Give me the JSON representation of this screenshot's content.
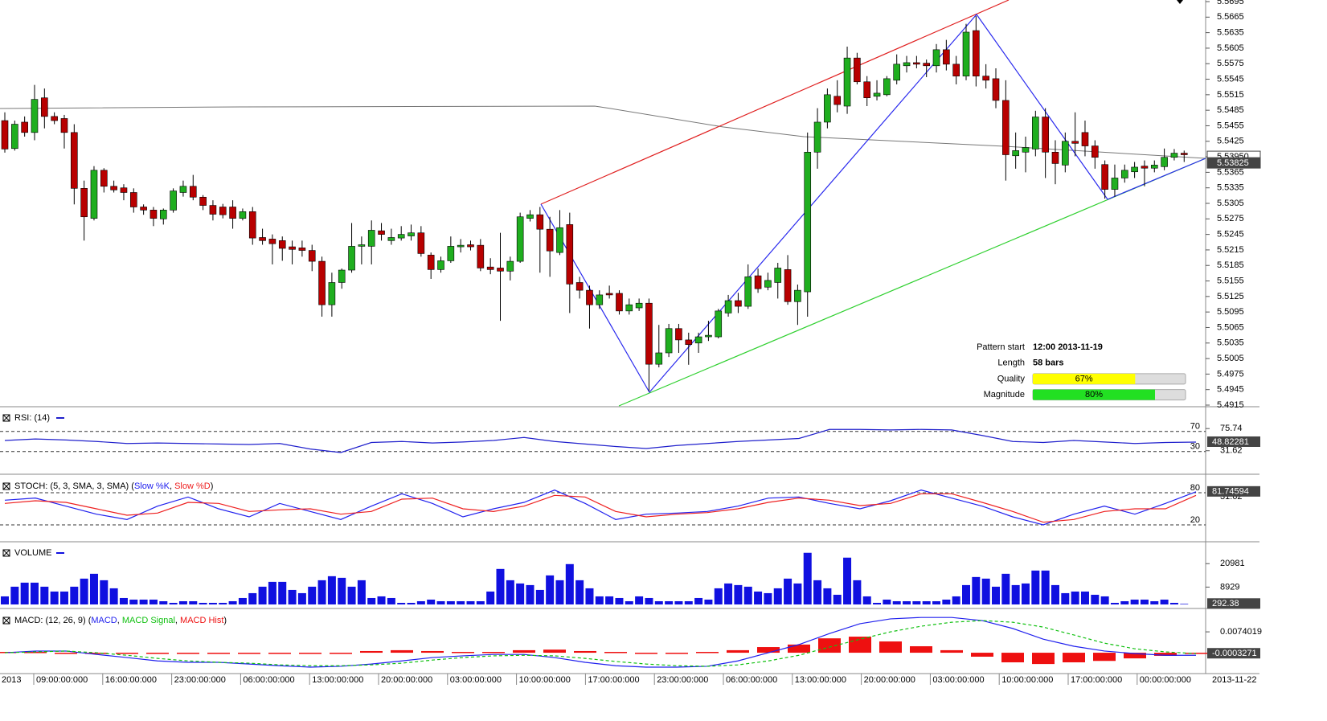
{
  "chart_data": {
    "type": "candlestick",
    "candles": [
      [
        5.5465,
        5.5481,
        5.5403,
        5.541
      ],
      [
        5.5411,
        5.5465,
        5.5407,
        5.5458
      ],
      [
        5.5462,
        5.5473,
        5.5434,
        5.5442
      ],
      [
        5.5442,
        5.5534,
        5.5427,
        5.5506
      ],
      [
        5.5509,
        5.5527,
        5.545,
        5.5473
      ],
      [
        5.5473,
        5.5481,
        5.5458,
        5.5465
      ],
      [
        5.5469,
        5.5476,
        5.5411,
        5.5442
      ],
      [
        5.5442,
        5.5458,
        5.5303,
        5.5334
      ],
      [
        5.5334,
        5.5349,
        5.5233,
        5.5279
      ],
      [
        5.5276,
        5.5377,
        5.5272,
        5.5369
      ],
      [
        5.5369,
        5.5373,
        5.5326,
        5.5338
      ],
      [
        5.5338,
        5.5349,
        5.5326,
        5.5331
      ],
      [
        5.5335,
        5.5342,
        5.5311,
        5.5326
      ],
      [
        5.5326,
        5.5334,
        5.5287,
        5.5298
      ],
      [
        5.5298,
        5.5303,
        5.5283,
        5.5292
      ],
      [
        5.5292,
        5.5298,
        5.5261,
        5.5276
      ],
      [
        5.5275,
        5.5295,
        5.5264,
        5.5292
      ],
      [
        5.5292,
        5.5334,
        5.5287,
        5.5329
      ],
      [
        5.5326,
        5.5349,
        5.5318,
        5.5338
      ],
      [
        5.5338,
        5.536,
        5.5311,
        5.5317
      ],
      [
        5.5317,
        5.5321,
        5.5292,
        5.5301
      ],
      [
        5.5301,
        5.5311,
        5.5272,
        5.5284
      ],
      [
        5.5298,
        5.5304,
        5.5276,
        5.5283
      ],
      [
        5.5298,
        5.5311,
        5.5256,
        5.5276
      ],
      [
        5.5276,
        5.5295,
        5.5272,
        5.5289
      ],
      [
        5.5289,
        5.5298,
        5.5225,
        5.5238
      ],
      [
        5.5239,
        5.5256,
        5.5225,
        5.5233
      ],
      [
        5.5236,
        5.5245,
        5.5187,
        5.5227
      ],
      [
        5.5233,
        5.5241,
        5.5194,
        5.5218
      ],
      [
        5.5221,
        5.5233,
        5.5187,
        5.5216
      ],
      [
        5.5219,
        5.5233,
        5.5202,
        5.5214
      ],
      [
        5.5214,
        5.5225,
        5.5174,
        5.5193
      ],
      [
        5.5193,
        5.5202,
        5.5086,
        5.5109
      ],
      [
        5.5109,
        5.5171,
        5.5086,
        5.5152
      ],
      [
        5.5152,
        5.5179,
        5.514,
        5.5176
      ],
      [
        5.5176,
        5.5267,
        5.5171,
        5.5222
      ],
      [
        5.5222,
        5.5241,
        5.5187,
        5.5225
      ],
      [
        5.5222,
        5.5272,
        5.5187,
        5.5253
      ],
      [
        5.5252,
        5.5267,
        5.5233,
        5.5245
      ],
      [
        5.5233,
        5.5256,
        5.5225,
        5.5239
      ],
      [
        5.5238,
        5.5261,
        5.5233,
        5.5245
      ],
      [
        5.5242,
        5.5264,
        5.5233,
        5.5248
      ],
      [
        5.5248,
        5.5261,
        5.5202,
        5.5208
      ],
      [
        5.5205,
        5.521,
        5.5159,
        5.5177
      ],
      [
        5.5177,
        5.5202,
        5.5171,
        5.5194
      ],
      [
        5.5194,
        5.5241,
        5.519,
        5.5222
      ],
      [
        5.5221,
        5.5236,
        5.521,
        5.5224
      ],
      [
        5.5225,
        5.5233,
        5.5214,
        5.5221
      ],
      [
        5.5224,
        5.5236,
        5.5174,
        5.518
      ],
      [
        5.5182,
        5.5199,
        5.5168,
        5.5177
      ],
      [
        5.518,
        5.5248,
        5.5078,
        5.5174
      ],
      [
        5.5174,
        5.5202,
        5.5156,
        5.5193
      ],
      [
        5.5193,
        5.5287,
        5.519,
        5.5279
      ],
      [
        5.5276,
        5.5292,
        5.527,
        5.5283
      ],
      [
        5.5283,
        5.5298,
        5.5171,
        5.5255
      ],
      [
        5.5255,
        5.5279,
        5.5163,
        5.5213
      ],
      [
        5.521,
        5.5292,
        5.5205,
        5.5258
      ],
      [
        5.5264,
        5.5287,
        5.5093,
        5.5149
      ],
      [
        5.5152,
        5.5163,
        5.5121,
        5.5137
      ],
      [
        5.5137,
        5.5146,
        5.5063,
        5.5109
      ],
      [
        5.5109,
        5.5137,
        5.5101,
        5.5128
      ],
      [
        5.5131,
        5.5146,
        5.5121,
        5.5128
      ],
      [
        5.5131,
        5.5137,
        5.509,
        5.5097
      ],
      [
        5.5097,
        5.5121,
        5.509,
        5.5109
      ],
      [
        5.5103,
        5.5121,
        5.5097,
        5.5112
      ],
      [
        5.5112,
        5.5121,
        5.4942,
        5.4994
      ],
      [
        5.4994,
        5.507,
        5.4988,
        5.5016
      ],
      [
        5.5016,
        5.5072,
        5.5008,
        5.5063
      ],
      [
        5.5063,
        5.5072,
        5.5016,
        5.5041
      ],
      [
        5.5041,
        5.5055,
        5.4993,
        5.5032
      ],
      [
        5.5035,
        5.5055,
        5.5016,
        5.5047
      ],
      [
        5.5047,
        5.5078,
        5.5039,
        5.505
      ],
      [
        5.5047,
        5.5101,
        5.5044,
        5.5097
      ],
      [
        5.5093,
        5.5128,
        5.5086,
        5.5117
      ],
      [
        5.5117,
        5.5132,
        5.5093,
        5.5106
      ],
      [
        5.5106,
        5.5187,
        5.5101,
        5.5163
      ],
      [
        5.5165,
        5.5179,
        5.5132,
        5.514
      ],
      [
        5.5143,
        5.5171,
        5.5137,
        5.5156
      ],
      [
        5.5152,
        5.519,
        5.5121,
        5.518
      ],
      [
        5.5177,
        5.5205,
        5.5109,
        5.5115
      ],
      [
        5.5115,
        5.5148,
        5.507,
        5.5137
      ],
      [
        5.5134,
        5.5442,
        5.5086,
        5.5404
      ],
      [
        5.5404,
        5.5489,
        5.5372,
        5.5462
      ],
      [
        5.5462,
        5.5527,
        5.545,
        5.5515
      ],
      [
        5.5512,
        5.5543,
        5.5481,
        5.5496
      ],
      [
        5.5493,
        5.5608,
        5.5478,
        5.5586
      ],
      [
        5.5586,
        5.5596,
        5.5535,
        5.554
      ],
      [
        5.554,
        5.5551,
        5.5493,
        5.5509
      ],
      [
        5.5512,
        5.5543,
        5.5504,
        5.5518
      ],
      [
        5.5515,
        5.5551,
        5.5512,
        5.5546
      ],
      [
        5.5543,
        5.5593,
        5.5535,
        5.5574
      ],
      [
        5.5571,
        5.559,
        5.5558,
        5.5577
      ],
      [
        5.5577,
        5.559,
        5.5566,
        5.5574
      ],
      [
        5.5576,
        5.5583,
        5.5549,
        5.5571
      ],
      [
        5.5571,
        5.5613,
        5.5558,
        5.5602
      ],
      [
        5.5602,
        5.5621,
        5.5562,
        5.5574
      ],
      [
        5.5574,
        5.559,
        5.5535,
        5.5551
      ],
      [
        5.5551,
        5.5652,
        5.5543,
        5.5636
      ],
      [
        5.5639,
        5.5667,
        5.5531,
        5.5551
      ],
      [
        5.5551,
        5.5574,
        5.5527,
        5.5543
      ],
      [
        5.5546,
        5.5566,
        5.5489,
        5.5504
      ],
      [
        5.5504,
        5.5543,
        5.5349,
        5.5399
      ],
      [
        5.5397,
        5.5442,
        5.5372,
        5.5407
      ],
      [
        5.5404,
        5.5434,
        5.5365,
        5.5413
      ],
      [
        5.541,
        5.5484,
        5.5396,
        5.5472
      ],
      [
        5.5472,
        5.5489,
        5.5354,
        5.5404
      ],
      [
        5.5404,
        5.5427,
        5.5342,
        5.5382
      ],
      [
        5.5379,
        5.5442,
        5.5365,
        5.5425
      ],
      [
        5.5425,
        5.5481,
        5.5396,
        5.5421
      ],
      [
        5.5442,
        5.5465,
        5.5396,
        5.5416
      ],
      [
        5.5416,
        5.5427,
        5.5372,
        5.5394
      ],
      [
        5.538,
        5.5388,
        5.5314,
        5.5332
      ],
      [
        5.5332,
        5.538,
        5.5318,
        5.5354
      ],
      [
        5.5354,
        5.538,
        5.5345,
        5.5369
      ],
      [
        5.5366,
        5.5385,
        5.5354,
        5.5375
      ],
      [
        5.5377,
        5.5388,
        5.5338,
        5.5373
      ],
      [
        5.5373,
        5.5388,
        5.5365,
        5.5379
      ],
      [
        5.5376,
        5.5411,
        5.5369,
        5.5394
      ],
      [
        5.5394,
        5.541,
        5.5388,
        5.5402
      ],
      [
        5.5402,
        5.5407,
        5.5385,
        5.5399
      ]
    ],
    "colors": {
      "up": "#1fae1f",
      "down": "#b80000"
    },
    "ylim": [
      5.4915,
      5.5695
    ],
    "yticks": [
      5.5695,
      5.5665,
      5.5635,
      5.5605,
      5.5575,
      5.5545,
      5.5515,
      5.5485,
      5.5455,
      5.5425,
      5.5395,
      5.5365,
      5.5335,
      5.5305,
      5.5275,
      5.5245,
      5.5215,
      5.5185,
      5.5155,
      5.5125,
      5.5095,
      5.5065,
      5.5035,
      5.5005,
      5.4975,
      5.4945,
      5.4915
    ],
    "price_labels": [
      {
        "value": 5.5395,
        "label": "5.53950"
      },
      {
        "value": 5.53825,
        "label": "5.53825"
      }
    ],
    "time_labels": [
      "2013",
      "09:00:00:000",
      "16:00:00:000",
      "23:00:00:000",
      "06:00:00:000",
      "13:00:00:000",
      "20:00:00:000",
      "03:00:00:000",
      "10:00:00:000",
      "17:00:00:000",
      "23:00:00:000",
      "06:00:00:000",
      "13:00:00:000",
      "20:00:00:000",
      "03:00:00:000",
      "10:00:00:000",
      "17:00:00:000",
      "00:00:00:000",
      "2013-11-22"
    ],
    "pattern_info": [
      {
        "label": "Pattern start",
        "text": "12:00 2013-11-19"
      },
      {
        "label": "Length",
        "text": "58 bars"
      },
      {
        "label": "Quality",
        "value": 67,
        "value_label": "67%",
        "color": "#ffff00"
      },
      {
        "label": "Magnitude",
        "value": 80,
        "value_label": "80%",
        "color": "#22e022"
      }
    ],
    "pattern_xlim": [
      0,
      100
    ]
  },
  "indicators": {
    "rsi": {
      "title": "RSI: (14)",
      "color": "#2020cc",
      "ylim": [
        -12,
        116
      ],
      "levels": [
        70,
        30
      ],
      "yticks": [
        75.74,
        31.62
      ],
      "values": [
        52,
        55,
        53,
        50,
        46,
        47,
        46,
        45,
        44,
        46,
        35,
        28,
        48,
        50,
        47,
        49,
        52,
        58,
        50,
        45,
        40,
        36,
        42,
        46,
        50,
        53,
        56,
        74,
        74,
        73,
        74,
        73,
        62,
        50,
        48,
        52,
        49,
        46,
        48,
        48.82281
      ]
    },
    "stoch": {
      "title": "STOCH: (5, 3, SMA, 3, SMA) (Slow %K, Slow %D)",
      "ylim": [
        -8.5,
        111.5
      ],
      "levels": [
        80,
        20
      ],
      "axis_text": "31.62",
      "series": [
        {
          "name": "Slow %K",
          "color": "#2020ee",
          "values": [
            66,
            70,
            55,
            40,
            30,
            55,
            72,
            50,
            35,
            60,
            45,
            30,
            55,
            78,
            60,
            35,
            50,
            62,
            85,
            60,
            30,
            40,
            42,
            45,
            55,
            70,
            72,
            60,
            50,
            65,
            85,
            70,
            55,
            35,
            20,
            40,
            55,
            40,
            60,
            81.74594
          ]
        },
        {
          "name": "Slow %D",
          "color": "#ee2020",
          "values": [
            60,
            65,
            62,
            50,
            38,
            42,
            62,
            60,
            45,
            48,
            50,
            40,
            45,
            68,
            70,
            50,
            45,
            55,
            75,
            72,
            45,
            35,
            40,
            43,
            50,
            62,
            70,
            66,
            56,
            60,
            78,
            78,
            62,
            45,
            25,
            30,
            45,
            50,
            50,
            75
          ]
        }
      ]
    },
    "volume": {
      "title": "VOLUME",
      "color": "#1010e0",
      "ylim": [
        0,
        31000
      ],
      "yticks": [
        20981,
        8929
      ],
      "values": [
        4150,
        9130,
        11205,
        11205,
        9130,
        6640,
        6640,
        9130,
        13280,
        15770,
        12450,
        8300,
        3320,
        2490,
        2490,
        2490,
        1660,
        830,
        1660,
        1660,
        830,
        830,
        830,
        1660,
        3320,
        5810,
        9130,
        11620,
        11620,
        7470,
        5810,
        9130,
        12450,
        14525,
        13695,
        9130,
        12450,
        3320,
        4150,
        3320,
        830,
        830,
        1660,
        2490,
        1660,
        1660,
        1660,
        1660,
        1660,
        6640,
        18260,
        12450,
        10790,
        9960,
        7470,
        14940,
        12450,
        20750,
        12450,
        8300,
        4150,
        4150,
        3320,
        1660,
        4150,
        3320,
        1660,
        1660,
        1660,
        1660,
        3320,
        2490,
        8300,
        10790,
        9960,
        9130,
        6640,
        5810,
        8300,
        13280,
        10790,
        26560,
        12450,
        8300,
        4980,
        24070,
        12450,
        4150,
        830,
        2490,
        1660,
        1660,
        1660,
        1660,
        1660,
        2490,
        4150,
        9960,
        14110,
        13280,
        9130,
        15770,
        9960,
        10790,
        17430,
        17430,
        9960,
        5810,
        6640,
        6640,
        4980,
        4150,
        830,
        1660,
        2490,
        2490,
        1660,
        2490,
        830,
        292.38
      ]
    },
    "macd": {
      "title": "MACD: (12, 26, 9) (MACD, MACD Signal, MACD Hist)",
      "ylim": [
        -0.0071,
        0.0154
      ],
      "yticks": [
        0.0074019
      ],
      "series": [
        {
          "name": "MACD",
          "color": "#2020ee",
          "values": [
            0,
            0.0006,
            0.0006,
            -0.0006,
            -0.0017,
            -0.0029,
            -0.0034,
            -0.0034,
            -0.004,
            -0.0046,
            -0.0051,
            -0.0048,
            -0.004,
            -0.0029,
            -0.0017,
            -0.0011,
            -0.0006,
            -0.0006,
            -0.0017,
            -0.0034,
            -0.0046,
            -0.0051,
            -0.0051,
            -0.0048,
            -0.0029,
            0,
            0.0029,
            0.0068,
            0.0103,
            0.012,
            0.0125,
            0.0125,
            0.0114,
            0.0086,
            0.0048,
            0.0023,
            0.0006,
            -0.0003,
            -0.0009,
            -0.0009
          ]
        },
        {
          "name": "MACD Signal",
          "color": "#10c010",
          "values": [
            0,
            0.0003,
            0.0006,
            0,
            -0.0009,
            -0.002,
            -0.0029,
            -0.0034,
            -0.0037,
            -0.0043,
            -0.0046,
            -0.0046,
            -0.0043,
            -0.0037,
            -0.0026,
            -0.0017,
            -0.0011,
            -0.0009,
            -0.0011,
            -0.002,
            -0.0031,
            -0.004,
            -0.0046,
            -0.0048,
            -0.0043,
            -0.0029,
            -0.0009,
            0.002,
            0.0048,
            0.0074,
            0.0094,
            0.0108,
            0.0114,
            0.0108,
            0.0091,
            0.0063,
            0.0034,
            0.0014,
            0.0003,
            -0.0003
          ]
        },
        {
          "name": "MACD Hist",
          "color": "#ee1010",
          "values": [
            0.0003,
            0.0003,
            0,
            -0.0003,
            -0.0003,
            -0.0003,
            0,
            0,
            -0.0003,
            -0.0003,
            -0.0003,
            -0.0003,
            0.0006,
            0.0009,
            0.0006,
            0.0003,
            0.0003,
            0.0009,
            0.0011,
            0.0006,
            0.0003,
            0,
            0,
            0.0003,
            0.0009,
            0.002,
            0.0029,
            0.0051,
            0.0057,
            0.004,
            0.0023,
            0.0009,
            -0.0014,
            -0.0034,
            -0.004,
            -0.0034,
            -0.0029,
            -0.002,
            -0.0011,
            -0.0003271
          ]
        }
      ]
    }
  }
}
